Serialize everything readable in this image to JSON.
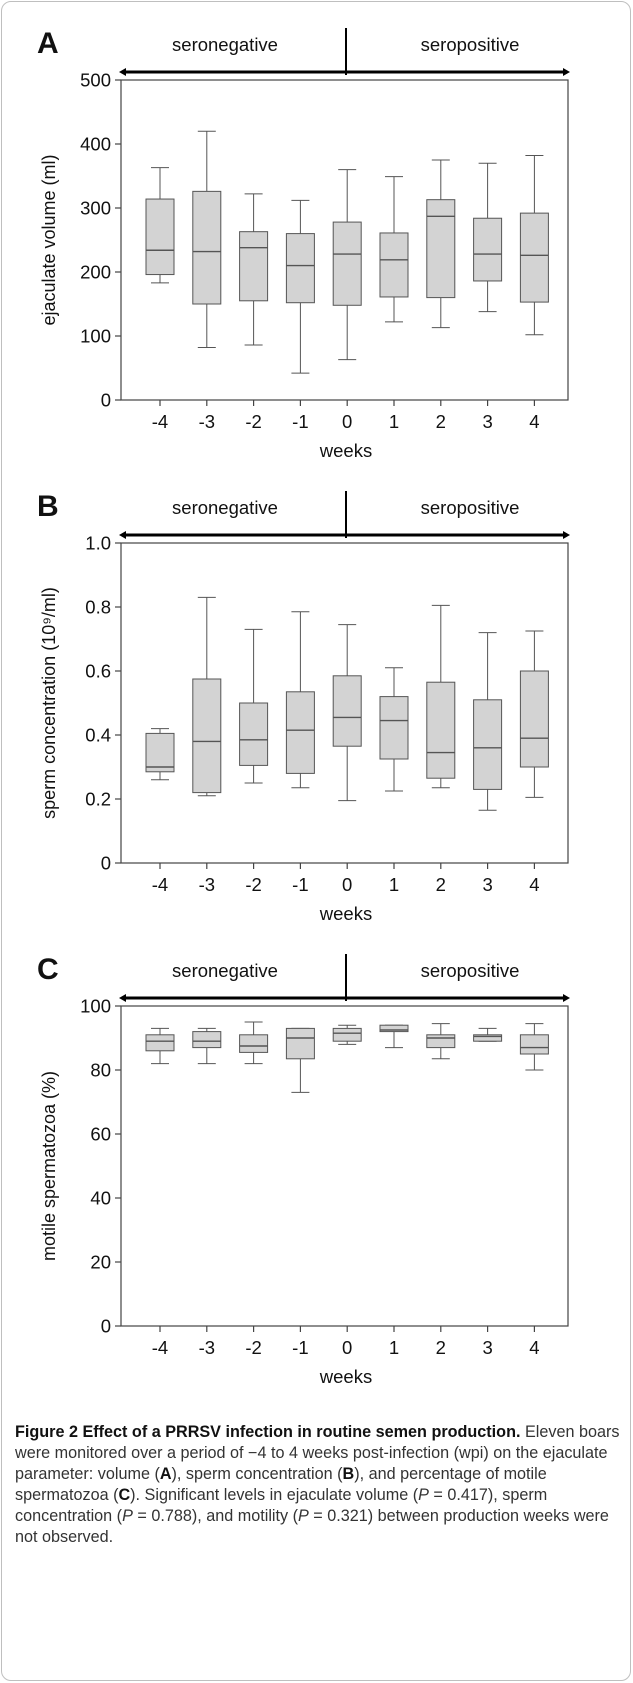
{
  "chart_data": [
    {
      "type": "box",
      "panel_label": "A",
      "periods": {
        "left": "seronegative",
        "right": "seropositive"
      },
      "xlabel": "weeks",
      "ylabel": "ejaculate volume (ml)",
      "ylim": [
        0,
        500
      ],
      "yticks": [
        0,
        100,
        200,
        300,
        400,
        500
      ],
      "ytick_labels": [
        "0",
        "100",
        "200",
        "300",
        "400",
        "500"
      ],
      "categories": [
        "-4",
        "-3",
        "-2",
        "-1",
        "0",
        "1",
        "2",
        "3",
        "4"
      ],
      "boxes": [
        {
          "min": 183,
          "q1": 196,
          "median": 234,
          "q3": 314,
          "max": 363
        },
        {
          "min": 82,
          "q1": 150,
          "median": 232,
          "q3": 326,
          "max": 420
        },
        {
          "min": 86,
          "q1": 155,
          "median": 238,
          "q3": 263,
          "max": 322
        },
        {
          "min": 42,
          "q1": 152,
          "median": 210,
          "q3": 260,
          "max": 312
        },
        {
          "min": 63,
          "q1": 148,
          "median": 228,
          "q3": 278,
          "max": 360
        },
        {
          "min": 122,
          "q1": 161,
          "median": 219,
          "q3": 261,
          "max": 349
        },
        {
          "min": 113,
          "q1": 160,
          "median": 287,
          "q3": 313,
          "max": 375
        },
        {
          "min": 138,
          "q1": 186,
          "median": 228,
          "q3": 284,
          "max": 370
        },
        {
          "min": 102,
          "q1": 153,
          "median": 226,
          "q3": 292,
          "max": 382
        }
      ]
    },
    {
      "type": "box",
      "panel_label": "B",
      "periods": {
        "left": "seronegative",
        "right": "seropositive"
      },
      "xlabel": "weeks",
      "ylabel": "sperm concentration (10⁹/ml)",
      "ylim": [
        0,
        1.0
      ],
      "yticks": [
        0,
        0.2,
        0.4,
        0.6,
        0.8,
        1.0
      ],
      "ytick_labels": [
        "0",
        "0.2",
        "0.4",
        "0.6",
        "0.8",
        "1.0"
      ],
      "categories": [
        "-4",
        "-3",
        "-2",
        "-1",
        "0",
        "1",
        "2",
        "3",
        "4"
      ],
      "boxes": [
        {
          "min": 0.26,
          "q1": 0.285,
          "median": 0.3,
          "q3": 0.405,
          "max": 0.42
        },
        {
          "min": 0.21,
          "q1": 0.22,
          "median": 0.38,
          "q3": 0.575,
          "max": 0.83
        },
        {
          "min": 0.25,
          "q1": 0.305,
          "median": 0.385,
          "q3": 0.5,
          "max": 0.73
        },
        {
          "min": 0.235,
          "q1": 0.28,
          "median": 0.415,
          "q3": 0.535,
          "max": 0.785
        },
        {
          "min": 0.195,
          "q1": 0.365,
          "median": 0.455,
          "q3": 0.585,
          "max": 0.745
        },
        {
          "min": 0.225,
          "q1": 0.325,
          "median": 0.445,
          "q3": 0.52,
          "max": 0.61
        },
        {
          "min": 0.235,
          "q1": 0.265,
          "median": 0.345,
          "q3": 0.565,
          "max": 0.805
        },
        {
          "min": 0.165,
          "q1": 0.23,
          "median": 0.36,
          "q3": 0.51,
          "max": 0.72
        },
        {
          "min": 0.205,
          "q1": 0.3,
          "median": 0.39,
          "q3": 0.6,
          "max": 0.725
        }
      ]
    },
    {
      "type": "box",
      "panel_label": "C",
      "periods": {
        "left": "seronegative",
        "right": "seropositive"
      },
      "xlabel": "weeks",
      "ylabel": "motile spermatozoa (%)",
      "ylim": [
        0,
        100
      ],
      "yticks": [
        0,
        20,
        40,
        60,
        80,
        100
      ],
      "ytick_labels": [
        "0",
        "20",
        "40",
        "60",
        "80",
        "100"
      ],
      "categories": [
        "-4",
        "-3",
        "-2",
        "-1",
        "0",
        "1",
        "2",
        "3",
        "4"
      ],
      "boxes": [
        {
          "min": 82,
          "q1": 86,
          "median": 89,
          "q3": 91,
          "max": 93
        },
        {
          "min": 82,
          "q1": 87,
          "median": 89,
          "q3": 92,
          "max": 93
        },
        {
          "min": 82,
          "q1": 85.5,
          "median": 87.5,
          "q3": 91,
          "max": 95
        },
        {
          "min": 73,
          "q1": 83.5,
          "median": 90,
          "q3": 93,
          "max": 93
        },
        {
          "min": 88,
          "q1": 89,
          "median": 91.5,
          "q3": 93,
          "max": 94
        },
        {
          "min": 87,
          "q1": 92,
          "median": 92.5,
          "q3": 94,
          "max": 94
        },
        {
          "min": 83.5,
          "q1": 87,
          "median": 90,
          "q3": 91,
          "max": 94.5
        },
        {
          "min": 89,
          "q1": 89,
          "median": 90.5,
          "q3": 91,
          "max": 93
        },
        {
          "min": 80,
          "q1": 85,
          "median": 87,
          "q3": 91,
          "max": 94.5
        }
      ]
    }
  ],
  "caption": {
    "title": "Figure 2 Effect of a PRRSV infection in routine semen production.",
    "text_1": " Eleven boars were monitored over a period of −4 to 4 weeks post-infection (wpi) on the ejaculate parameter: volume (",
    "label_a": "A",
    "text_2": "), sperm concentration (",
    "label_b": "B",
    "text_3": "), and percentage of motile spermatozoa (",
    "label_c": "C",
    "text_4": "). Significant levels in ejaculate volume (",
    "p_1_var": "P",
    "p_1_val": " = 0.417), sperm concentration (",
    "p_2_var": "P",
    "p_2_val": " = 0.788), and motility (",
    "p_3_var": "P",
    "p_3_val": " = 0.321) between production weeks were not observed."
  },
  "colors": {
    "box_fill": "#d3d3d3",
    "box_stroke": "#555555",
    "axis": "#444444",
    "text": "#111111",
    "caption_text": "#333333"
  }
}
